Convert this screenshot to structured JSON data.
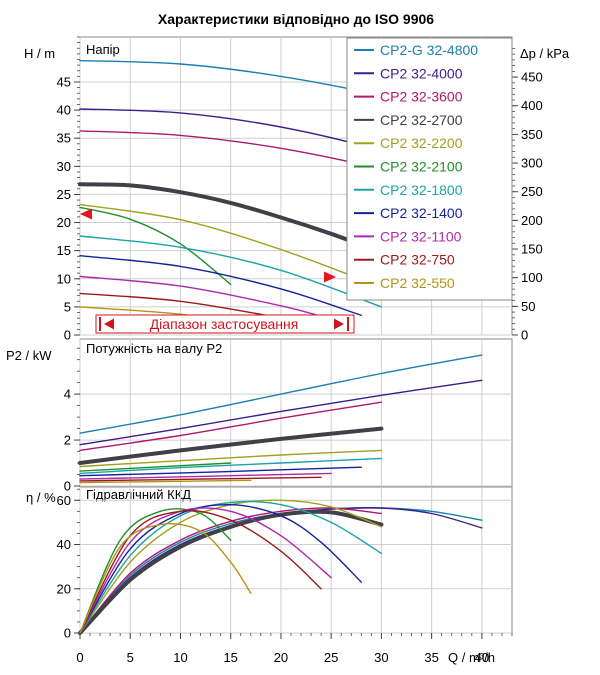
{
  "title": "Характеристики відповідно до ISO 9906",
  "chart_data": [
    {
      "type": "line",
      "panel_label": "Напір",
      "ylabel_left": "H / m",
      "ylabel_right": "Δp / kPa",
      "ylim": [
        0,
        53
      ],
      "yticks_left": [
        0,
        5,
        10,
        15,
        20,
        25,
        30,
        35,
        40,
        45
      ],
      "yticks_right": [
        0,
        50,
        100,
        150,
        200,
        250,
        300,
        350,
        400,
        450
      ],
      "range_label": "Діапазон застосування",
      "legend_position": "top-right",
      "series": [
        {
          "name": "CP2-G 32-4800",
          "color": "#1a7fb0",
          "x": [
            0,
            10,
            20,
            30,
            40,
            42
          ],
          "y": [
            48.8,
            48.2,
            46,
            42.6,
            38.2,
            37.0
          ]
        },
        {
          "name": "CP2 32-4000",
          "color": "#3a1e8c",
          "x": [
            0,
            10,
            20,
            30,
            40
          ],
          "y": [
            40.2,
            39.5,
            37.0,
            32.8,
            27.2
          ]
        },
        {
          "name": "CP2 32-3600",
          "color": "#b0176e",
          "x": [
            0,
            10,
            20,
            30,
            40
          ],
          "y": [
            36.3,
            35.5,
            33.2,
            29.5,
            24.6
          ]
        },
        {
          "name": "CP2 32-2700",
          "color": "#404048",
          "x": [
            0,
            5,
            10,
            15,
            20,
            25,
            30
          ],
          "y": [
            26.8,
            26.6,
            25.4,
            23.5,
            20.9,
            18.0,
            14.7
          ]
        },
        {
          "name": "CP2 32-2200",
          "color": "#9fa21a",
          "x": [
            0,
            10,
            20,
            30
          ],
          "y": [
            23.2,
            20.5,
            15.2,
            8.5
          ]
        },
        {
          "name": "CP2 32-2100",
          "color": "#1e8f2e",
          "x": [
            0,
            5,
            10,
            15
          ],
          "y": [
            22.7,
            20.6,
            16.2,
            9.0
          ]
        },
        {
          "name": "CP2 32-1800",
          "color": "#1aa3a8",
          "x": [
            0,
            10,
            20,
            30
          ],
          "y": [
            17.6,
            15.6,
            11.5,
            5.0
          ]
        },
        {
          "name": "CP2 32-1400",
          "color": "#15239a",
          "x": [
            0,
            10,
            20,
            28
          ],
          "y": [
            14.1,
            12.2,
            8.2,
            3.5
          ]
        },
        {
          "name": "CP2 32-1100",
          "color": "#b026b0",
          "x": [
            0,
            10,
            20,
            25
          ],
          "y": [
            10.4,
            8.7,
            5.2,
            2.8
          ]
        },
        {
          "name": "CP2 32-750",
          "color": "#9b1a1a",
          "x": [
            0,
            10,
            20,
            24
          ],
          "y": [
            7.4,
            6.0,
            3.0,
            1.4
          ]
        },
        {
          "name": "CP2 32-550",
          "color": "#b39416",
          "x": [
            0,
            10,
            17
          ],
          "y": [
            5.0,
            3.7,
            1.7
          ]
        }
      ]
    },
    {
      "type": "line",
      "panel_label": "Потужність на валу Р2",
      "ylabel": "P2 / kW",
      "ylim": [
        0,
        6.4
      ],
      "yticks": [
        0,
        2,
        4
      ],
      "series": [
        {
          "name": "CP2-G 32-4800",
          "color": "#1a7fb0",
          "x": [
            0,
            10,
            20,
            30,
            40
          ],
          "y": [
            2.3,
            3.1,
            4.0,
            4.9,
            5.7
          ]
        },
        {
          "name": "CP2 32-4000",
          "color": "#3a1e8c",
          "x": [
            0,
            10,
            20,
            30,
            40
          ],
          "y": [
            1.8,
            2.5,
            3.25,
            3.95,
            4.6
          ]
        },
        {
          "name": "CP2 32-3600",
          "color": "#b0176e",
          "x": [
            0,
            10,
            20,
            30
          ],
          "y": [
            1.55,
            2.2,
            2.95,
            3.65
          ]
        },
        {
          "name": "CP2 32-2700",
          "color": "#404048",
          "x": [
            0,
            10,
            20,
            30
          ],
          "y": [
            1.0,
            1.55,
            2.05,
            2.5
          ]
        },
        {
          "name": "CP2 32-2200",
          "color": "#9fa21a",
          "x": [
            0,
            10,
            20,
            30
          ],
          "y": [
            0.85,
            1.1,
            1.35,
            1.55
          ]
        },
        {
          "name": "CP2 32-2100",
          "color": "#1e8f2e",
          "x": [
            0,
            15
          ],
          "y": [
            0.65,
            1.0
          ]
        },
        {
          "name": "CP2 32-1800",
          "color": "#1aa3a8",
          "x": [
            0,
            10,
            20,
            30
          ],
          "y": [
            0.55,
            0.8,
            1.0,
            1.2
          ]
        },
        {
          "name": "CP2 32-1400",
          "color": "#15239a",
          "x": [
            0,
            14,
            28
          ],
          "y": [
            0.45,
            0.62,
            0.82
          ]
        },
        {
          "name": "CP2 32-1100",
          "color": "#b026b0",
          "x": [
            0,
            12,
            25
          ],
          "y": [
            0.3,
            0.42,
            0.55
          ]
        },
        {
          "name": "CP2 32-750",
          "color": "#9b1a1a",
          "x": [
            0,
            12,
            24
          ],
          "y": [
            0.22,
            0.3,
            0.38
          ]
        },
        {
          "name": "CP2 32-550",
          "color": "#b39416",
          "x": [
            0,
            9,
            17
          ],
          "y": [
            0.15,
            0.2,
            0.25
          ]
        }
      ]
    },
    {
      "type": "line",
      "panel_label": "Гідравлічний ККД",
      "ylabel": "η / %",
      "xlabel": "Q / m³/h",
      "xlim": [
        0,
        43
      ],
      "xticks": [
        0,
        5,
        10,
        15,
        20,
        25,
        30,
        35,
        40
      ],
      "ylim": [
        0,
        66
      ],
      "yticks": [
        0,
        20,
        40,
        60
      ],
      "series": [
        {
          "name": "CP2-G 32-4800",
          "color": "#1a7fb0",
          "x": [
            0,
            5,
            10,
            15,
            20,
            25,
            30,
            35,
            40
          ],
          "y": [
            0,
            26,
            41,
            49.5,
            54,
            56,
            56.5,
            55,
            51
          ]
        },
        {
          "name": "CP2 32-4000",
          "color": "#3a1e8c",
          "x": [
            0,
            5,
            10,
            15,
            20,
            25,
            30,
            35,
            40
          ],
          "y": [
            0,
            25,
            40,
            48.5,
            53.5,
            56,
            56.5,
            54,
            47.5
          ]
        },
        {
          "name": "CP2 32-3600",
          "color": "#b0176e",
          "x": [
            0,
            5,
            10,
            15,
            20,
            25,
            30
          ],
          "y": [
            0,
            27,
            42,
            50.5,
            55,
            56.5,
            54
          ]
        },
        {
          "name": "CP2 32-2700",
          "color": "#404048",
          "x": [
            0,
            5,
            10,
            15,
            20,
            25,
            30
          ],
          "y": [
            0,
            24,
            39,
            48,
            53.5,
            54.5,
            49
          ]
        },
        {
          "name": "CP2 32-2200",
          "color": "#9fa21a",
          "x": [
            0,
            5,
            10,
            15,
            20,
            25,
            30
          ],
          "y": [
            0,
            32,
            50,
            58,
            60,
            57,
            48
          ]
        },
        {
          "name": "CP2 32-2100",
          "color": "#1e8f2e",
          "x": [
            0,
            4,
            8,
            12,
            15
          ],
          "y": [
            0,
            42,
            55,
            54,
            42
          ]
        },
        {
          "name": "CP2 32-1800",
          "color": "#1aa3a8",
          "x": [
            0,
            5,
            10,
            15,
            20,
            25,
            30
          ],
          "y": [
            0,
            35,
            53,
            59,
            58,
            50,
            36
          ]
        },
        {
          "name": "CP2 32-1400",
          "color": "#15239a",
          "x": [
            0,
            5,
            10,
            15,
            20,
            24,
            28
          ],
          "y": [
            0,
            38,
            54,
            58,
            53,
            41,
            23
          ]
        },
        {
          "name": "CP2 32-1100",
          "color": "#b026b0",
          "x": [
            0,
            5,
            10,
            15,
            20,
            25
          ],
          "y": [
            0,
            41,
            55,
            55,
            44,
            25
          ]
        },
        {
          "name": "CP2 32-750",
          "color": "#9b1a1a",
          "x": [
            0,
            5,
            10,
            15,
            20,
            24
          ],
          "y": [
            0,
            44,
            55,
            51,
            37,
            20
          ]
        },
        {
          "name": "CP2 32-550",
          "color": "#b39416",
          "x": [
            0,
            4,
            8,
            12,
            15,
            17
          ],
          "y": [
            0,
            39,
            49,
            46,
            32,
            18
          ]
        }
      ]
    }
  ]
}
